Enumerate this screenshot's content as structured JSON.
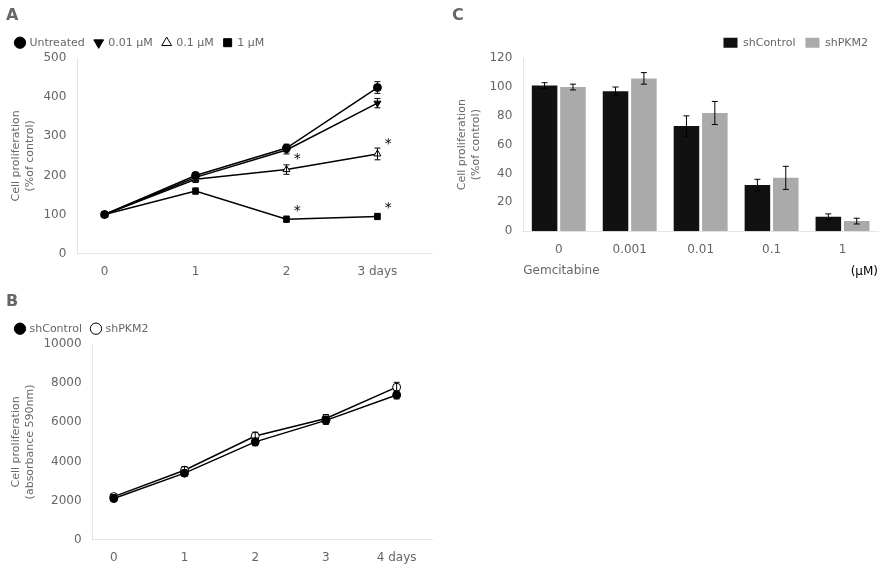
{
  "chart_data": [
    {
      "type": "line",
      "title": "A",
      "x": [
        0,
        1,
        2,
        3
      ],
      "xlim": [
        -0.3,
        3.6
      ],
      "xticks": [
        0,
        1,
        2,
        {
          "value": 3,
          "label": "3 days"
        }
      ],
      "ylim": [
        0,
        500
      ],
      "yticks": [
        0,
        100,
        200,
        300,
        400,
        500
      ],
      "ylabel": "Cell proliferation\n(%of control)",
      "grid": false,
      "legend": "upper left",
      "series": [
        {
          "name": "Untreated",
          "color": "#000000",
          "marker": "circle",
          "values": [
            100,
            200,
            270,
            425
          ],
          "errors": [
            3,
            8,
            10,
            15
          ]
        },
        {
          "name": "0.01 μM",
          "color": "#000000",
          "marker": "triangle-down",
          "values": [
            100,
            195,
            265,
            385
          ],
          "errors": [
            3,
            8,
            10,
            12
          ]
        },
        {
          "name": "0.1 μM",
          "color": "#000000",
          "marker": "triangle-open",
          "values": [
            100,
            190,
            215,
            255
          ],
          "errors": [
            3,
            8,
            12,
            15
          ]
        },
        {
          "name": "1 μM",
          "color": "#000000",
          "marker": "square",
          "values": [
            100,
            160,
            88,
            95
          ],
          "errors": [
            3,
            8,
            8,
            8
          ]
        }
      ],
      "annotations": [
        {
          "x": 2.08,
          "y": 222,
          "text": "*"
        },
        {
          "x": 3.08,
          "y": 262,
          "text": "*"
        },
        {
          "x": 2.08,
          "y": 90,
          "text": "*"
        },
        {
          "x": 3.08,
          "y": 97,
          "text": "*"
        }
      ]
    },
    {
      "type": "line",
      "title": "B",
      "x": [
        0,
        1,
        2,
        3,
        4
      ],
      "xlim": [
        -0.3,
        4.5
      ],
      "xticks": [
        0,
        1,
        2,
        3,
        {
          "value": 4,
          "label": "4 days"
        }
      ],
      "ylim": [
        0,
        10000
      ],
      "yticks": [
        0,
        2000,
        4000,
        6000,
        8000,
        10000
      ],
      "ylabel": "Cell proliferation\n(absorbance 590nm)",
      "grid": false,
      "legend": "upper left",
      "series": [
        {
          "name": "shControl",
          "color": "#000000",
          "marker": "circle",
          "values": [
            2100,
            3400,
            5000,
            6100,
            7400
          ],
          "errors": [
            100,
            150,
            200,
            200,
            200
          ]
        },
        {
          "name": "shPKM2",
          "color": "#000000",
          "marker": "circle-open",
          "values": [
            2200,
            3550,
            5300,
            6200,
            7800
          ],
          "errors": [
            100,
            180,
            200,
            200,
            250
          ]
        }
      ]
    },
    {
      "type": "bar",
      "title": "C",
      "categories": [
        "0",
        "0.001",
        "0.01",
        "0.1",
        "1"
      ],
      "ylim": [
        0,
        120
      ],
      "yticks": [
        0,
        20,
        40,
        60,
        80,
        100,
        120
      ],
      "ylabel": "Cell proliferation\n(%of control)",
      "xlabel": "Gemcitabine",
      "grid": false,
      "legend": "upper right",
      "series": [
        {
          "name": "shControl",
          "color": "#111111",
          "values": [
            101,
            97,
            73,
            32,
            10
          ],
          "errors": [
            2,
            3,
            7,
            4,
            2
          ]
        },
        {
          "name": "shPKM2",
          "color": "#aaaaaa",
          "values": [
            100,
            106,
            82,
            37,
            7
          ],
          "errors": [
            2,
            4,
            8,
            8,
            2
          ]
        }
      ],
      "annotations": [
        {
          "text": "(μM)"
        }
      ]
    }
  ]
}
